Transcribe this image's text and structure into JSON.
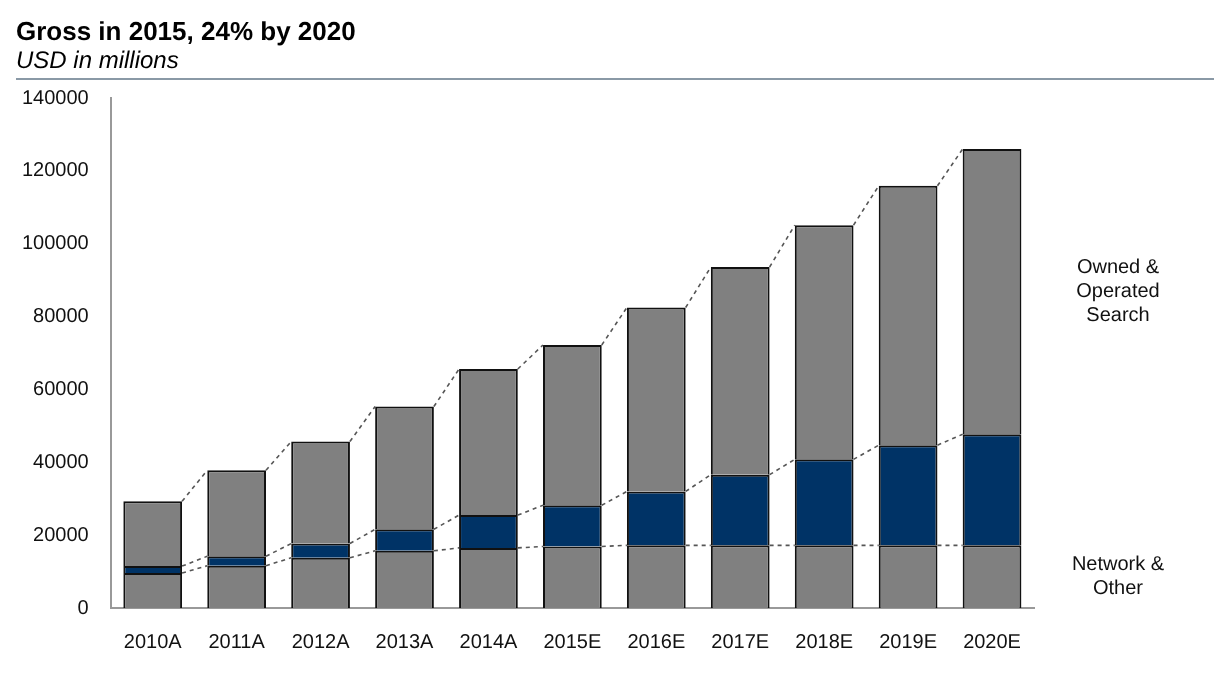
{
  "chart_data": {
    "type": "bar",
    "title": "Gross in 2015, 24% by 2020",
    "subtitle": "USD in millions",
    "stacked": true,
    "grid": false,
    "legend": false,
    "categories": [
      "2010A",
      "2011A",
      "2012A",
      "2013A",
      "2014A",
      "2015E",
      "2016E",
      "2017E",
      "2018E",
      "2019E",
      "2020E"
    ],
    "series": [
      {
        "name": "Network & Other",
        "color": "#808080",
        "values": [
          9600,
          11600,
          13800,
          15700,
          16500,
          16900,
          17200,
          17200,
          17200,
          17200,
          17200
        ]
      },
      {
        "color": "#003366",
        "values": [
          1900,
          2600,
          3900,
          5900,
          9000,
          11300,
          14800,
          19400,
          23600,
          27500,
          30500
        ]
      },
      {
        "name": "Owned & Operated Search",
        "color": "#808080",
        "values": [
          17800,
          23600,
          28000,
          33700,
          40100,
          44000,
          50500,
          57000,
          64300,
          71200,
          78300
        ]
      }
    ],
    "ylim": [
      0,
      140000
    ],
    "yticks": [
      0,
      20000,
      40000,
      60000,
      80000,
      100000,
      120000,
      140000
    ]
  }
}
